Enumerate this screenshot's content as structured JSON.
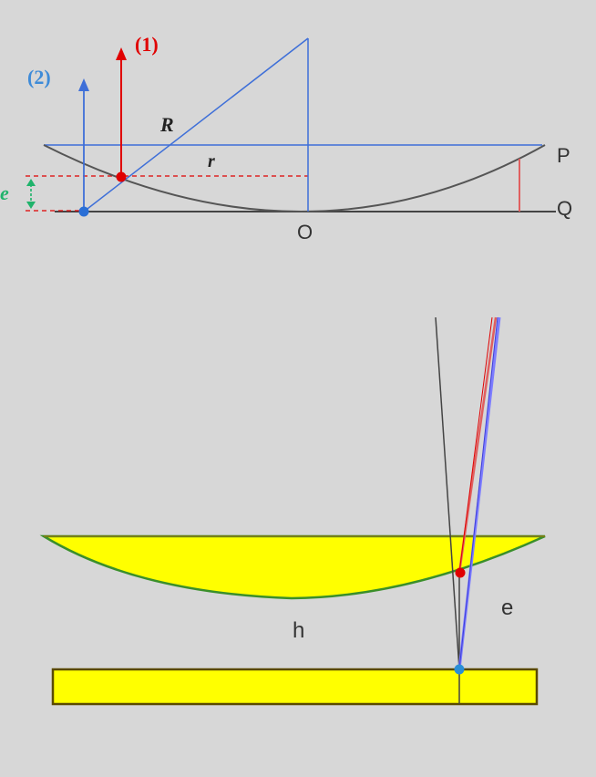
{
  "top_diagram": {
    "label_ray_1": "(1)",
    "label_ray_2": "(2)",
    "label_radius_R": "R",
    "label_r": "r",
    "label_e": "e",
    "label_P": "P",
    "label_Q": "Q",
    "label_O": "O"
  },
  "bottom_diagram": {
    "label_h": "h",
    "label_e": "e"
  },
  "colors": {
    "background": "#d7d7d7",
    "red": "#e00000",
    "blue": "#3e6fd8",
    "green": "#1fb36b",
    "lens_fill": "#ffff00",
    "lens_border": "#3a8f2a",
    "plate_border": "#7a6a00",
    "dark_line": "#444444"
  }
}
